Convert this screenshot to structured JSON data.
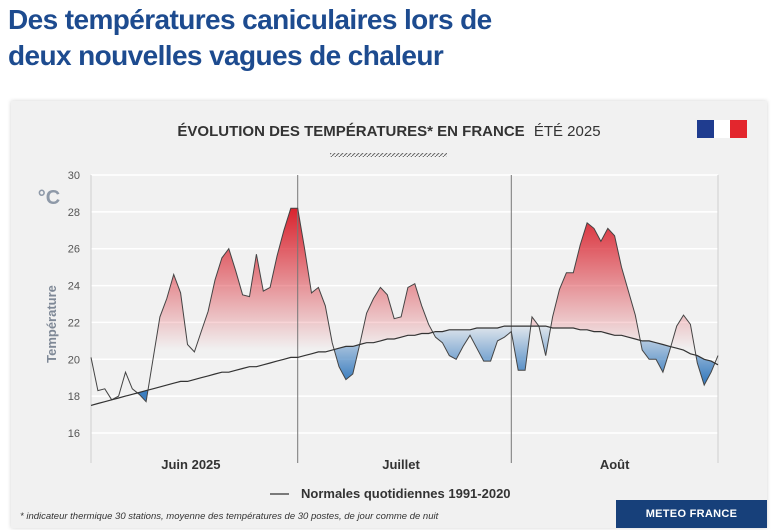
{
  "headline": {
    "line1": "Des températures caniculaires lors de",
    "line2": "deux nouvelles vagues de chaleur"
  },
  "panel": {
    "title_bold": "ÉVOLUTION DES TEMPÉRATURES* EN FRANCE",
    "title_light": "ÉTÉ 2025"
  },
  "footnote": "* indicateur thermique 30 stations, moyenne des températures de 30 postes, de jour comme de nuit",
  "brand": "METEO FRANCE",
  "flag_colors": [
    "#1f3c8f",
    "#ffffff",
    "#e3262d"
  ],
  "colors": {
    "hot": "#d9242f",
    "cold": "#3d7fc0",
    "line": "#333333",
    "grid": "#ffffff"
  },
  "chart_data": {
    "type": "area",
    "unit": "°C",
    "ylabel": "Température",
    "ylim": [
      15,
      30
    ],
    "yticks": [
      16,
      18,
      20,
      22,
      24,
      26,
      28,
      30
    ],
    "x": {
      "start": "2025-06-01",
      "end": "2025-08-31",
      "step": "day"
    },
    "months": [
      "Juin 2025",
      "Juillet",
      "Août"
    ],
    "legend": "Normales quotidiennes 1991-2020",
    "series": [
      {
        "values": [
          20.1,
          18.3,
          18.4,
          17.8,
          18.0,
          19.3,
          18.4,
          18.1,
          17.7,
          20.0,
          22.3,
          23.3,
          24.6,
          23.6,
          20.8,
          20.4,
          21.5,
          22.6,
          24.3,
          25.5,
          26.0,
          24.8,
          23.5,
          23.4,
          25.7,
          23.7,
          23.9,
          25.6,
          27.0,
          28.2,
          28.2,
          26.0,
          23.6,
          23.9,
          22.9,
          20.9,
          19.6,
          18.9,
          19.2,
          20.8,
          22.5,
          23.3,
          23.9,
          23.5,
          22.2,
          22.3,
          23.9,
          24.1,
          22.9,
          21.9,
          21.2,
          20.9,
          20.2,
          20.0,
          20.7,
          21.3,
          20.6,
          19.9,
          19.9,
          21.0,
          21.2,
          21.5,
          19.4,
          19.4,
          22.3,
          21.8,
          20.2,
          22.3,
          23.8,
          24.7,
          24.7,
          26.2,
          27.4,
          27.1,
          26.4,
          27.1,
          26.7,
          25.0,
          23.7,
          22.4,
          20.5,
          20.0,
          20.0,
          19.3,
          20.5,
          21.8,
          22.4,
          21.9,
          19.8,
          18.6,
          19.3,
          20.2
        ]
      },
      {
        "name": "Normales quotidiennes 1991-2020",
        "values": [
          17.5,
          17.6,
          17.7,
          17.8,
          17.9,
          18.0,
          18.1,
          18.2,
          18.3,
          18.4,
          18.5,
          18.6,
          18.7,
          18.8,
          18.8,
          18.9,
          19.0,
          19.1,
          19.2,
          19.3,
          19.3,
          19.4,
          19.5,
          19.6,
          19.6,
          19.7,
          19.8,
          19.9,
          20.0,
          20.1,
          20.1,
          20.2,
          20.3,
          20.4,
          20.4,
          20.5,
          20.6,
          20.7,
          20.7,
          20.8,
          20.9,
          20.9,
          21.0,
          21.1,
          21.1,
          21.2,
          21.3,
          21.3,
          21.4,
          21.4,
          21.5,
          21.5,
          21.6,
          21.6,
          21.6,
          21.6,
          21.7,
          21.7,
          21.7,
          21.7,
          21.8,
          21.8,
          21.8,
          21.8,
          21.8,
          21.8,
          21.8,
          21.7,
          21.7,
          21.7,
          21.7,
          21.6,
          21.6,
          21.5,
          21.5,
          21.4,
          21.3,
          21.3,
          21.2,
          21.1,
          21.0,
          21.0,
          20.9,
          20.8,
          20.7,
          20.6,
          20.5,
          20.3,
          20.2,
          20.0,
          19.9,
          19.7
        ]
      }
    ]
  }
}
